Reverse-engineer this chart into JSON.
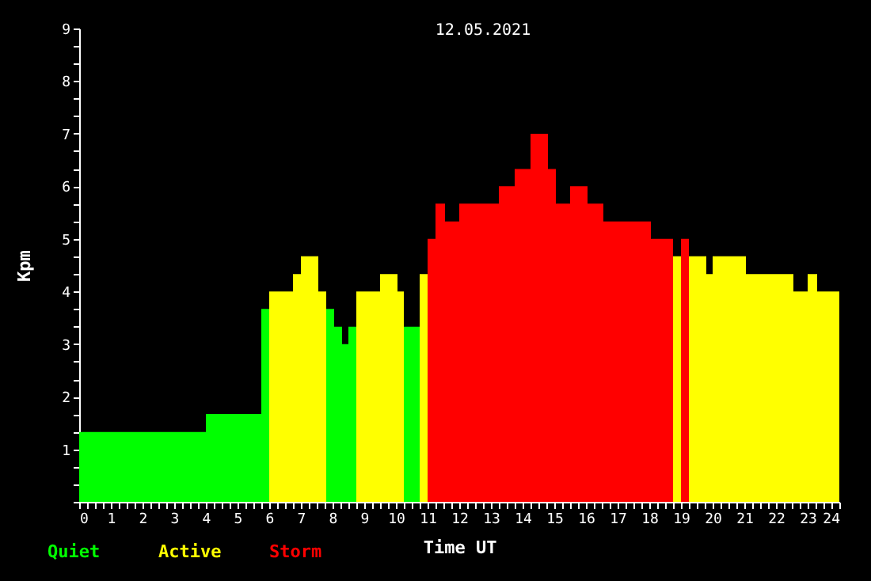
{
  "chart_data": {
    "type": "histogram",
    "title": "12.05.2021",
    "xlabel": "Time UT",
    "ylabel": "Kpm",
    "bins": [
      0,
      4,
      5.75,
      6,
      6.75,
      7,
      7.55,
      7.8,
      8.05,
      8.3,
      8.5,
      8.75,
      9.5,
      10.05,
      10.25,
      10.75,
      11,
      11.25,
      11.55,
      12,
      13.25,
      13.75,
      14.25,
      14.8,
      15.05,
      15.5,
      16.05,
      16.55,
      18.05,
      18.75,
      19,
      19.25,
      19.8,
      20,
      21.05,
      22.55,
      23,
      23.3,
      24
    ],
    "series": [
      {
        "name": "Quiet",
        "color": "#00ff00",
        "values": [
          1.33,
          1.67,
          3.67,
          null,
          null,
          null,
          null,
          3.67,
          3.33,
          3,
          3.33,
          null,
          null,
          null,
          3.33,
          null,
          null,
          null,
          null,
          null,
          null,
          null,
          null,
          null,
          null,
          null,
          null,
          null,
          null,
          null,
          null,
          null,
          null,
          null,
          null,
          null,
          null,
          null
        ]
      },
      {
        "name": "Active",
        "color": "#ffff00",
        "values": [
          null,
          null,
          null,
          4,
          4.33,
          4.67,
          4,
          null,
          null,
          null,
          null,
          4,
          4.33,
          4,
          null,
          4.33,
          null,
          null,
          null,
          null,
          null,
          null,
          null,
          null,
          null,
          null,
          null,
          null,
          null,
          4.67,
          null,
          4.67,
          4.33,
          4.67,
          4.33,
          4,
          4.33,
          4
        ]
      },
      {
        "name": "Storm",
        "color": "#ff0000",
        "values": [
          null,
          null,
          null,
          null,
          null,
          null,
          null,
          null,
          null,
          null,
          null,
          null,
          null,
          null,
          null,
          null,
          5,
          5.67,
          5.33,
          5.67,
          6,
          6.33,
          7,
          6.33,
          5.67,
          6,
          5.67,
          5.33,
          5,
          null,
          5,
          null,
          null,
          null,
          null,
          null,
          null,
          null
        ]
      }
    ],
    "xlim": [
      0,
      24
    ],
    "ylim": [
      0,
      9
    ],
    "xticks": [
      0,
      {
        "value": 0.25,
        "label": null
      },
      {
        "value": 0.5,
        "label": null
      },
      {
        "value": 0.75,
        "label": null
      },
      1,
      {
        "value": 1.25,
        "label": null
      },
      {
        "value": 1.5,
        "label": null
      },
      {
        "value": 1.75,
        "label": null
      },
      2,
      {
        "value": 2.25,
        "label": null
      },
      {
        "value": 2.5,
        "label": null
      },
      {
        "value": 2.75,
        "label": null
      },
      3,
      {
        "value": 3.25,
        "label": null
      },
      {
        "value": 3.5,
        "label": null
      },
      {
        "value": 3.75,
        "label": null
      },
      4,
      {
        "value": 4.25,
        "label": null
      },
      {
        "value": 4.5,
        "label": null
      },
      {
        "value": 4.75,
        "label": null
      },
      5,
      {
        "value": 5.25,
        "label": null
      },
      {
        "value": 5.5,
        "label": null
      },
      {
        "value": 5.75,
        "label": null
      },
      6,
      {
        "value": 6.25,
        "label": null
      },
      {
        "value": 6.5,
        "label": null
      },
      {
        "value": 6.75,
        "label": null
      },
      7,
      {
        "value": 7.25,
        "label": null
      },
      {
        "value": 7.5,
        "label": null
      },
      {
        "value": 7.75,
        "label": null
      },
      8,
      {
        "value": 8.25,
        "label": null
      },
      {
        "value": 8.5,
        "label": null
      },
      {
        "value": 8.75,
        "label": null
      },
      9,
      {
        "value": 9.25,
        "label": null
      },
      {
        "value": 9.5,
        "label": null
      },
      {
        "value": 9.75,
        "label": null
      },
      10,
      {
        "value": 10.25,
        "label": null
      },
      {
        "value": 10.5,
        "label": null
      },
      {
        "value": 10.75,
        "label": null
      },
      11,
      {
        "value": 11.25,
        "label": null
      },
      {
        "value": 11.5,
        "label": null
      },
      {
        "value": 11.75,
        "label": null
      },
      12,
      {
        "value": 12.25,
        "label": null
      },
      {
        "value": 12.5,
        "label": null
      },
      {
        "value": 12.75,
        "label": null
      },
      13,
      {
        "value": 13.25,
        "label": null
      },
      {
        "value": 13.5,
        "label": null
      },
      {
        "value": 13.75,
        "label": null
      },
      14,
      {
        "value": 14.25,
        "label": null
      },
      {
        "value": 14.5,
        "label": null
      },
      {
        "value": 14.75,
        "label": null
      },
      15,
      {
        "value": 15.25,
        "label": null
      },
      {
        "value": 15.5,
        "label": null
      },
      {
        "value": 15.75,
        "label": null
      },
      16,
      {
        "value": 16.25,
        "label": null
      },
      {
        "value": 16.5,
        "label": null
      },
      {
        "value": 16.75,
        "label": null
      },
      17,
      {
        "value": 17.25,
        "label": null
      },
      {
        "value": 17.5,
        "label": null
      },
      {
        "value": 17.75,
        "label": null
      },
      18,
      {
        "value": 18.25,
        "label": null
      },
      {
        "value": 18.5,
        "label": null
      },
      {
        "value": 18.75,
        "label": null
      },
      19,
      {
        "value": 19.25,
        "label": null
      },
      {
        "value": 19.5,
        "label": null
      },
      {
        "value": 19.75,
        "label": null
      },
      20,
      {
        "value": 20.25,
        "label": null
      },
      {
        "value": 20.5,
        "label": null
      },
      {
        "value": 20.75,
        "label": null
      },
      21,
      {
        "value": 21.25,
        "label": null
      },
      {
        "value": 21.5,
        "label": null
      },
      {
        "value": 21.75,
        "label": null
      },
      22,
      {
        "value": 22.25,
        "label": null
      },
      {
        "value": 22.5,
        "label": null
      },
      {
        "value": 22.75,
        "label": null
      },
      23,
      {
        "value": 23.25,
        "label": null
      },
      {
        "value": 23.5,
        "label": null
      },
      {
        "value": 23.75,
        "label": null
      },
      24
    ],
    "yticks": [
      {
        "value": 0,
        "label": null
      },
      {
        "value": 0.33,
        "label": null
      },
      {
        "value": 0.67,
        "label": null
      },
      1,
      {
        "value": 1.33,
        "label": null
      },
      {
        "value": 1.67,
        "label": null
      },
      2,
      {
        "value": 2.33,
        "label": null
      },
      {
        "value": 2.67,
        "label": null
      },
      3,
      {
        "value": 3.33,
        "label": null
      },
      {
        "value": 3.67,
        "label": null
      },
      4,
      {
        "value": 4.33,
        "label": null
      },
      {
        "value": 4.67,
        "label": null
      },
      5,
      {
        "value": 5.33,
        "label": null
      },
      {
        "value": 5.67,
        "label": null
      },
      6,
      {
        "value": 6.33,
        "label": null
      },
      {
        "value": 6.67,
        "label": null
      },
      7,
      {
        "value": 7.33,
        "label": null
      },
      {
        "value": 7.67,
        "label": null
      },
      8,
      {
        "value": 8.33,
        "label": null
      },
      {
        "value": 8.67,
        "label": null
      },
      9
    ]
  }
}
